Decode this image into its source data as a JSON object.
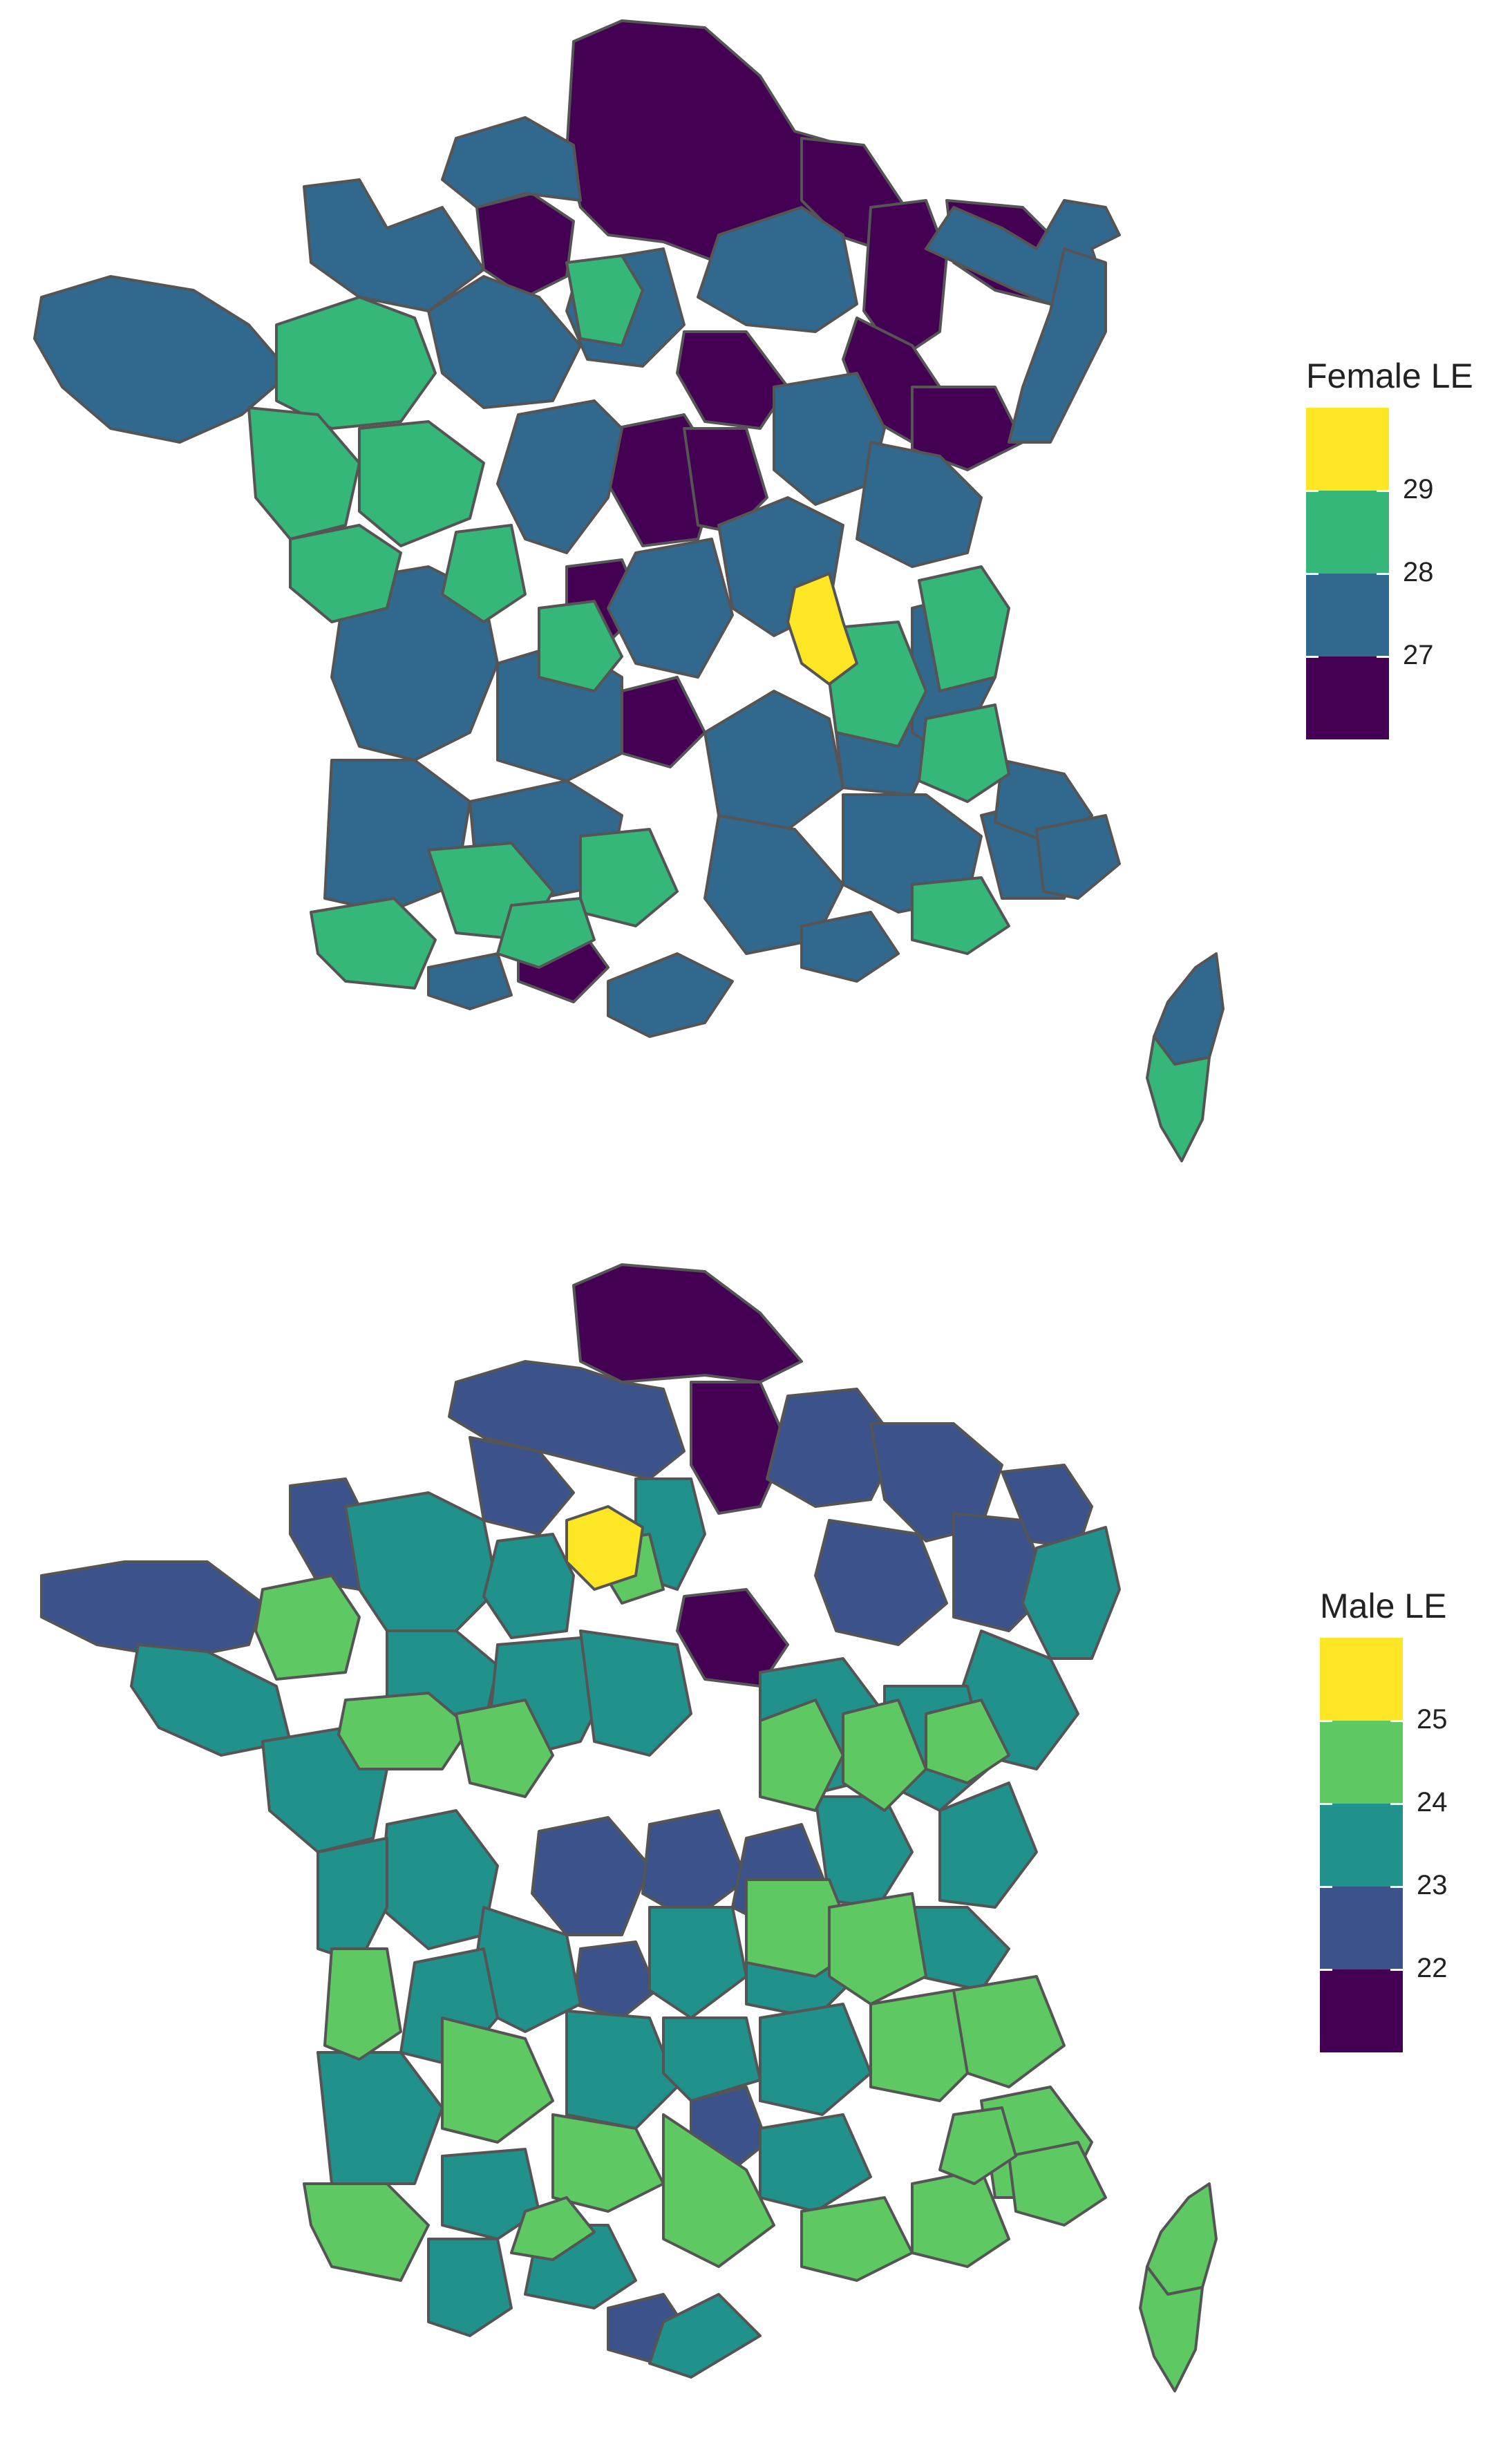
{
  "palette": {
    "yellow": "#FDE725",
    "green": "#35B779",
    "teal": "#31688E",
    "purple": "#440154",
    "m_yellow": "#FDE725",
    "m_light_green": "#5EC962",
    "m_teal": "#21918C",
    "m_blue": "#3B528B",
    "m_purple": "#440154",
    "border": "#555555"
  },
  "maps": [
    {
      "id": "female",
      "legend": {
        "title": "Female LE",
        "bins": [
          "#FDE725",
          "#35B779",
          "#31688E",
          "#440154"
        ],
        "ticks": [
          "29",
          "28",
          "27"
        ]
      },
      "corsica": [
        "teal",
        "green"
      ]
    },
    {
      "id": "male",
      "legend": {
        "title": "Male LE",
        "bins": [
          "#FDE725",
          "#5EC962",
          "#21918C",
          "#3B528B",
          "#440154"
        ],
        "ticks": [
          "25",
          "24",
          "23",
          "22"
        ]
      },
      "corsica": [
        "m_light_green",
        "m_light_green"
      ]
    }
  ]
}
